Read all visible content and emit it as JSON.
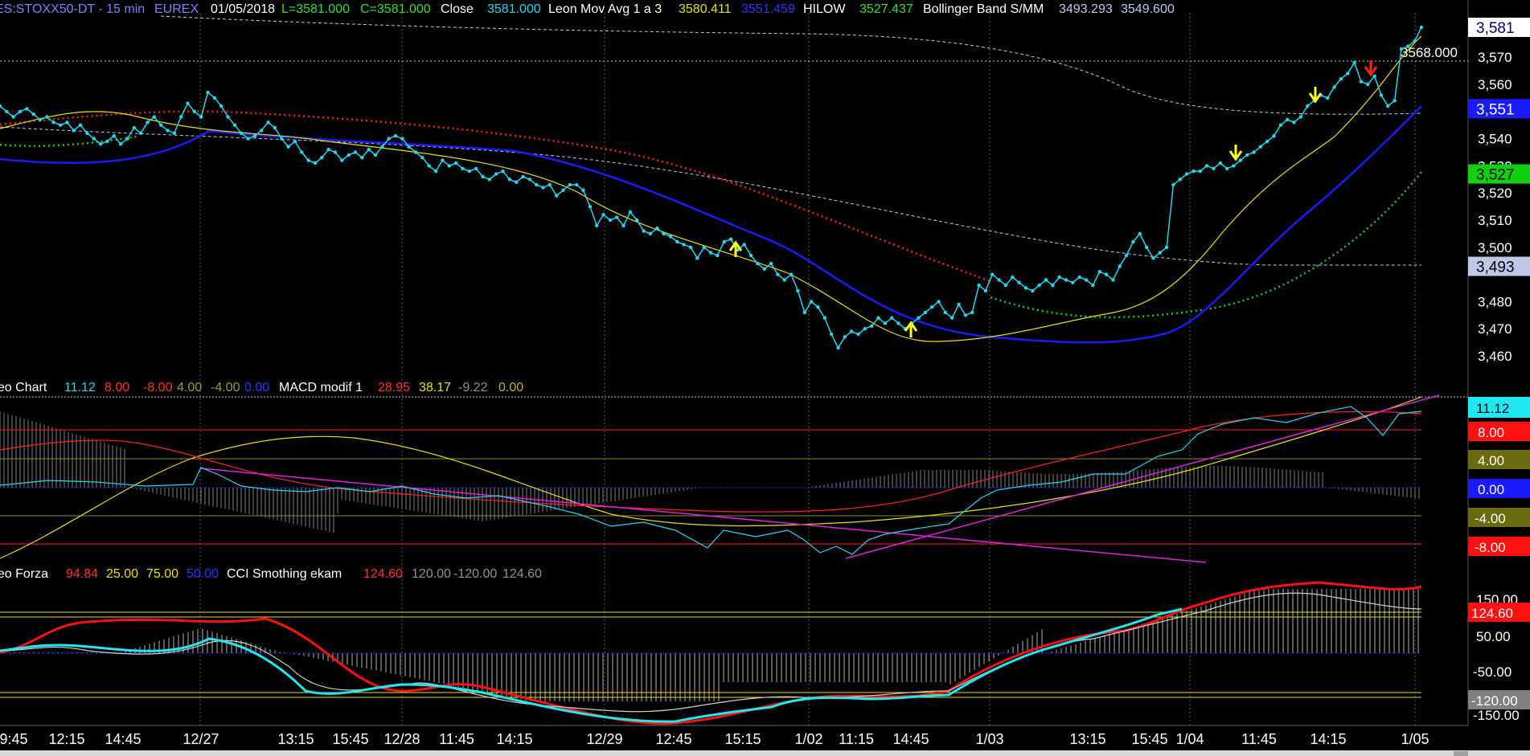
{
  "header": {
    "symbol": "ES:STOXX50-DT - 15 min",
    "exchange": "EUREX",
    "date": "01/05/2018",
    "last": "L=3581.000",
    "close_eq": "C=3581.000",
    "close_label": "Close",
    "close_value": "3581.000",
    "ma_label": "Leon Mov Avg 1 a 3",
    "ma_value_1": "3580.411",
    "ma_value_2": "3551.459",
    "hilow_label": "HILOW",
    "hilow_value": "3527.437",
    "bb_label": "Bollinger Band S/MM",
    "bb_value_1": "3493.293",
    "bb_value_2": "3549.600"
  },
  "macd_header": {
    "label": "Leo Chart",
    "v1": "11.12",
    "v2": "8.00",
    "v3": "-8.00",
    "v4": "4.00",
    "v5": "-4.00",
    "v6": "0.00",
    "macd_label": "MACD modif 1",
    "m1": "28.95",
    "m2": "38.17",
    "m3": "-9.22",
    "m4": "0.00"
  },
  "cci_header": {
    "label": "Leo Forza",
    "f1": "94.84",
    "f2": "25.00",
    "f3": "75.00",
    "f4": "50.00",
    "cci_label": "CCI Smothing ekam",
    "c1": "124.60",
    "c2": "120.00",
    "c3": "-120.00",
    "c4": "124.60"
  },
  "colors": {
    "price": "#20d8f0",
    "ma_fast": "#e8e000",
    "ma_slow": "#1a1aff",
    "hilow": "#10d010",
    "resist": "#ff2020",
    "bb_line": "#c0c8e8",
    "macd_cyan": "#20d8f0",
    "macd_red": "#ff2020",
    "macd_yellow": "#e8e000",
    "trend": "#e020e0",
    "cci_cyan": "#20e8f0",
    "cci_red": "#ff1010",
    "cci_gray": "#d0d0d0"
  },
  "chart_data": {
    "type": "line",
    "x_ticks": [
      "9:45",
      "12:15",
      "14:45",
      "12/27",
      "13:15",
      "15:45",
      "12/28",
      "11:45",
      "14:15",
      "12/29",
      "12:45",
      "15:15",
      "1/02",
      "11:15",
      "14:45",
      "1/03",
      "13:15",
      "15:45",
      "1/04",
      "11:45",
      "14:15",
      "1/05"
    ],
    "price_axis": [
      "3,570",
      "3,560",
      "3,540",
      "3,530",
      "3,520",
      "3,510",
      "3,500",
      "3,480",
      "3,470",
      "3,460"
    ],
    "price_labels": [
      {
        "text": "3,581",
        "value": 3581,
        "bg": "#ffffff",
        "fg": "#000080"
      },
      {
        "text": "3,551",
        "value": 3551,
        "bg": "#1a1aff",
        "fg": "#ffffff"
      },
      {
        "text": "3,527",
        "value": 3527,
        "bg": "#10d010",
        "fg": "#000000"
      },
      {
        "text": "3,493",
        "value": 3493,
        "bg": "#c0c8e8",
        "fg": "#000000"
      }
    ],
    "level_label": "3568.000",
    "level_value": 3568,
    "ylim": [
      3455,
      3586
    ],
    "close_series": [
      3552,
      3550,
      3548,
      3550,
      3551,
      3549,
      3547,
      3548,
      3546,
      3545,
      3546,
      3543,
      3545,
      3542,
      3540,
      3538,
      3539,
      3541,
      3538,
      3540,
      3544,
      3542,
      3546,
      3548,
      3545,
      3543,
      3542,
      3548,
      3553,
      3550,
      3548,
      3557,
      3555,
      3552,
      3548,
      3545,
      3542,
      3540,
      3541,
      3543,
      3546,
      3544,
      3540,
      3537,
      3539,
      3535,
      3532,
      3531,
      3533,
      3536,
      3535,
      3532,
      3534,
      3535,
      3533,
      3536,
      3534,
      3537,
      3540,
      3541,
      3540,
      3537,
      3535,
      3533,
      3530,
      3528,
      3532,
      3530,
      3531,
      3529,
      3528,
      3529,
      3526,
      3525,
      3527,
      3528,
      3525,
      3524,
      3526,
      3525,
      3523,
      3522,
      3523,
      3519,
      3521,
      3523,
      3523,
      3521,
      3515,
      3508,
      3512,
      3510,
      3511,
      3508,
      3513,
      3510,
      3506,
      3505,
      3507,
      3505,
      3504,
      3502,
      3501,
      3500,
      3496,
      3500,
      3498,
      3497,
      3502,
      3503,
      3499,
      3501,
      3497,
      3494,
      3492,
      3494,
      3490,
      3488,
      3490,
      3484,
      3476,
      3480,
      3478,
      3474,
      3468,
      3463,
      3467,
      3469,
      3468,
      3470,
      3471,
      3474,
      3472,
      3474,
      3472,
      3470,
      3472,
      3474,
      3476,
      3478,
      3480,
      3476,
      3474,
      3479,
      3475,
      3476,
      3486,
      3484,
      3490,
      3488,
      3486,
      3489,
      3487,
      3485,
      3484,
      3486,
      3488,
      3486,
      3489,
      3488,
      3487,
      3489,
      3488,
      3486,
      3491,
      3490,
      3488,
      3493,
      3497,
      3502,
      3505,
      3500,
      3496,
      3498,
      3500,
      3523,
      3525,
      3527,
      3528,
      3528,
      3530,
      3529,
      3531,
      3529,
      3530,
      3532,
      3534,
      3535,
      3537,
      3539,
      3541,
      3545,
      3547,
      3546,
      3548,
      3552,
      3554,
      3556,
      3555,
      3559,
      3562,
      3564,
      3568,
      3561,
      3560,
      3563,
      3556,
      3552,
      3554,
      3573,
      3574,
      3576,
      3581
    ],
    "series_names": [
      "Close",
      "Leon Mov Avg 1 a 3",
      "HILOW",
      "Bollinger Band S/MM"
    ]
  }
}
